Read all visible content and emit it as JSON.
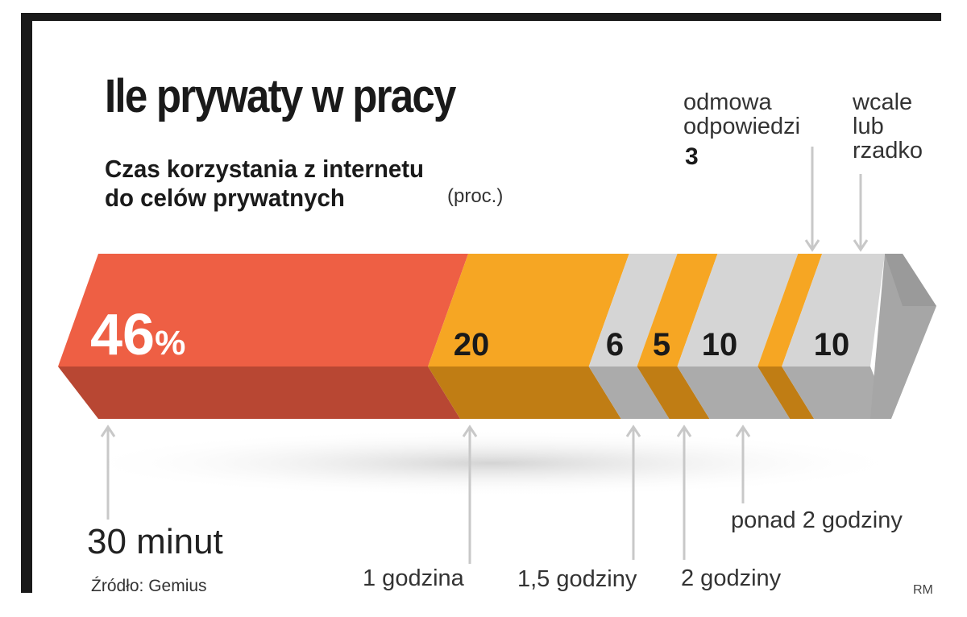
{
  "chart_data": {
    "type": "bar",
    "stacked": true,
    "title": "Ile prywaty w pracy",
    "subtitle": [
      "Czas korzystania z internetu",
      "do celów prywatnych"
    ],
    "unit": "(proc.)",
    "segments": [
      {
        "category": "30 minut",
        "value": 46,
        "value_label": "46",
        "value_suffix": "%",
        "color": "#ee5f44",
        "shade": "#b84733",
        "label_color": "#ffffff"
      },
      {
        "category": "1 godzina",
        "value": 20,
        "value_label": "20",
        "value_suffix": "",
        "color": "#f6a623",
        "shade": "#c07d14",
        "label_color": "#1a1a1a"
      },
      {
        "category": "1,5 godziny",
        "value": 6,
        "value_label": "6",
        "value_suffix": "",
        "color": "#d5d5d5",
        "shade": "#ababab",
        "label_color": "#1a1a1a"
      },
      {
        "category": "2 godziny",
        "value": 5,
        "value_label": "5",
        "value_suffix": "",
        "color": "#f6a623",
        "shade": "#c07d14",
        "label_color": "#1a1a1a"
      },
      {
        "category": "ponad 2 godziny",
        "value": 10,
        "value_label": "10",
        "value_suffix": "",
        "color": "#d5d5d5",
        "shade": "#ababab",
        "label_color": "#1a1a1a"
      },
      {
        "category": "odmowa odpowiedzi",
        "value": 3,
        "value_label": "",
        "value_suffix": "",
        "color": "#f6a623",
        "shade": "#c07d14",
        "label_color": "#1a1a1a"
      },
      {
        "category": "wcale lub rzadko",
        "value": 10,
        "value_label": "10",
        "value_suffix": "",
        "color": "#d5d5d5",
        "shade": "#ababab",
        "label_color": "#1a1a1a"
      }
    ],
    "labels": {
      "m30": "30 minut",
      "h1": "1 godzina",
      "h15": "1,5 godziny",
      "h2": "2 godziny",
      "h2plus": "ponad 2 godziny",
      "refusal_line1": "odmowa",
      "refusal_line2": "odpowiedzi",
      "refusal_value": "3",
      "never_line1": "wcale",
      "never_line2": "lub",
      "never_line3": "rzadko"
    },
    "arrow_color": "#c8c8c8"
  },
  "source": "Źródło: Gemius",
  "credit": "RM"
}
